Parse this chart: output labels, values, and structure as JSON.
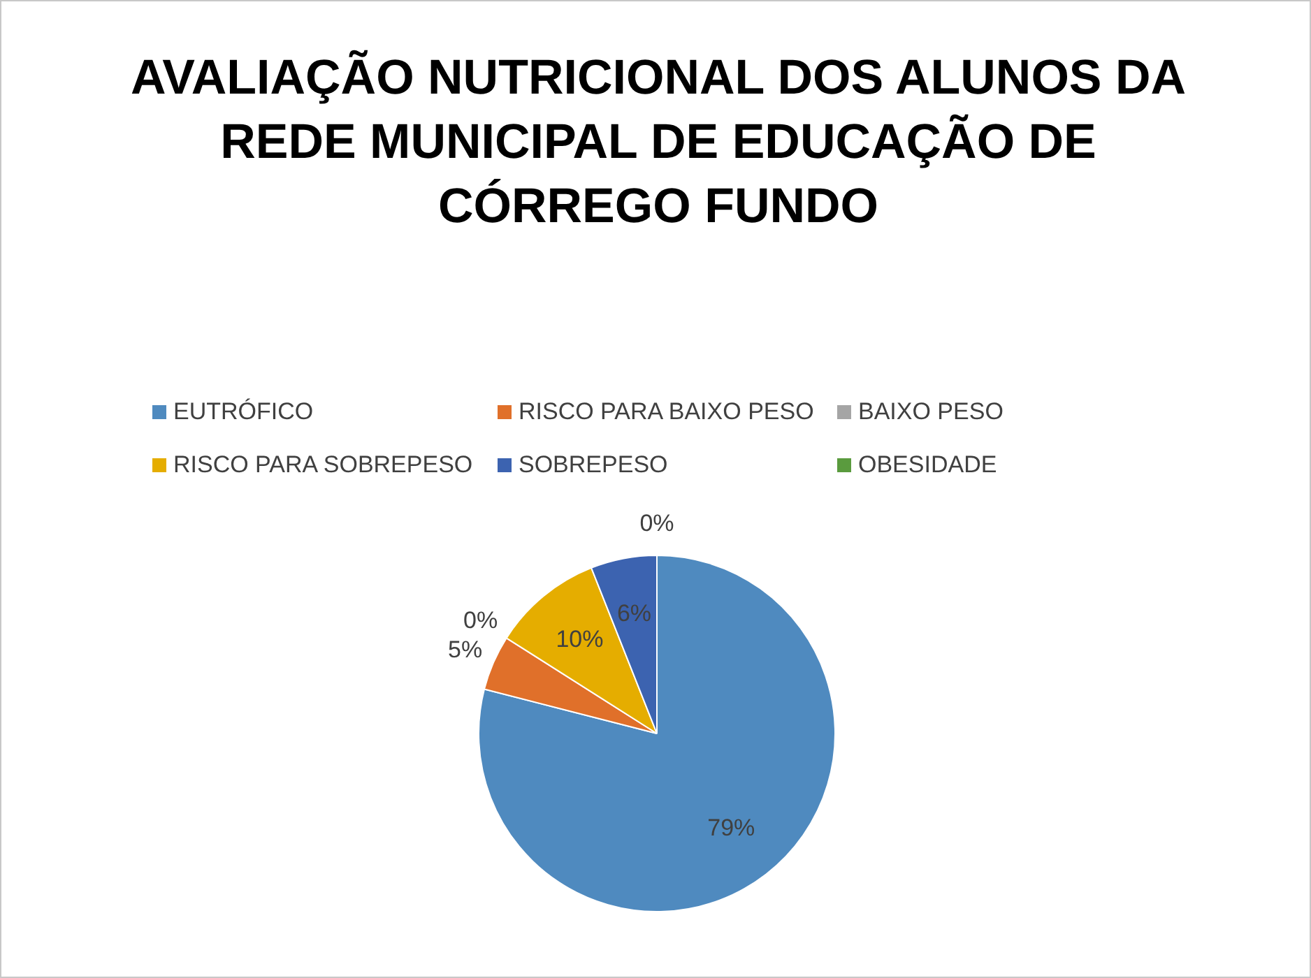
{
  "chart_data": {
    "type": "pie",
    "title": "AVALIAÇÃO NUTRICIONAL DOS ALUNOS DA REDE MUNICIPAL DE EDUCAÇÃO DE CÓRREGO FUNDO",
    "categories": [
      "EUTRÓFICO",
      "RISCO PARA BAIXO PESO",
      "BAIXO PESO",
      "RISCO PARA SOBREPESO",
      "SOBREPESO",
      "OBESIDADE"
    ],
    "values": [
      79,
      5,
      0,
      10,
      6,
      0
    ],
    "value_labels": [
      "79%",
      "5%",
      "0%",
      "10%",
      "6%",
      "0%"
    ],
    "colors": [
      "#4f8abf",
      "#e0702a",
      "#a5a5a5",
      "#e5ad00",
      "#3c63b0",
      "#5a9b3e"
    ],
    "legend": "top"
  }
}
